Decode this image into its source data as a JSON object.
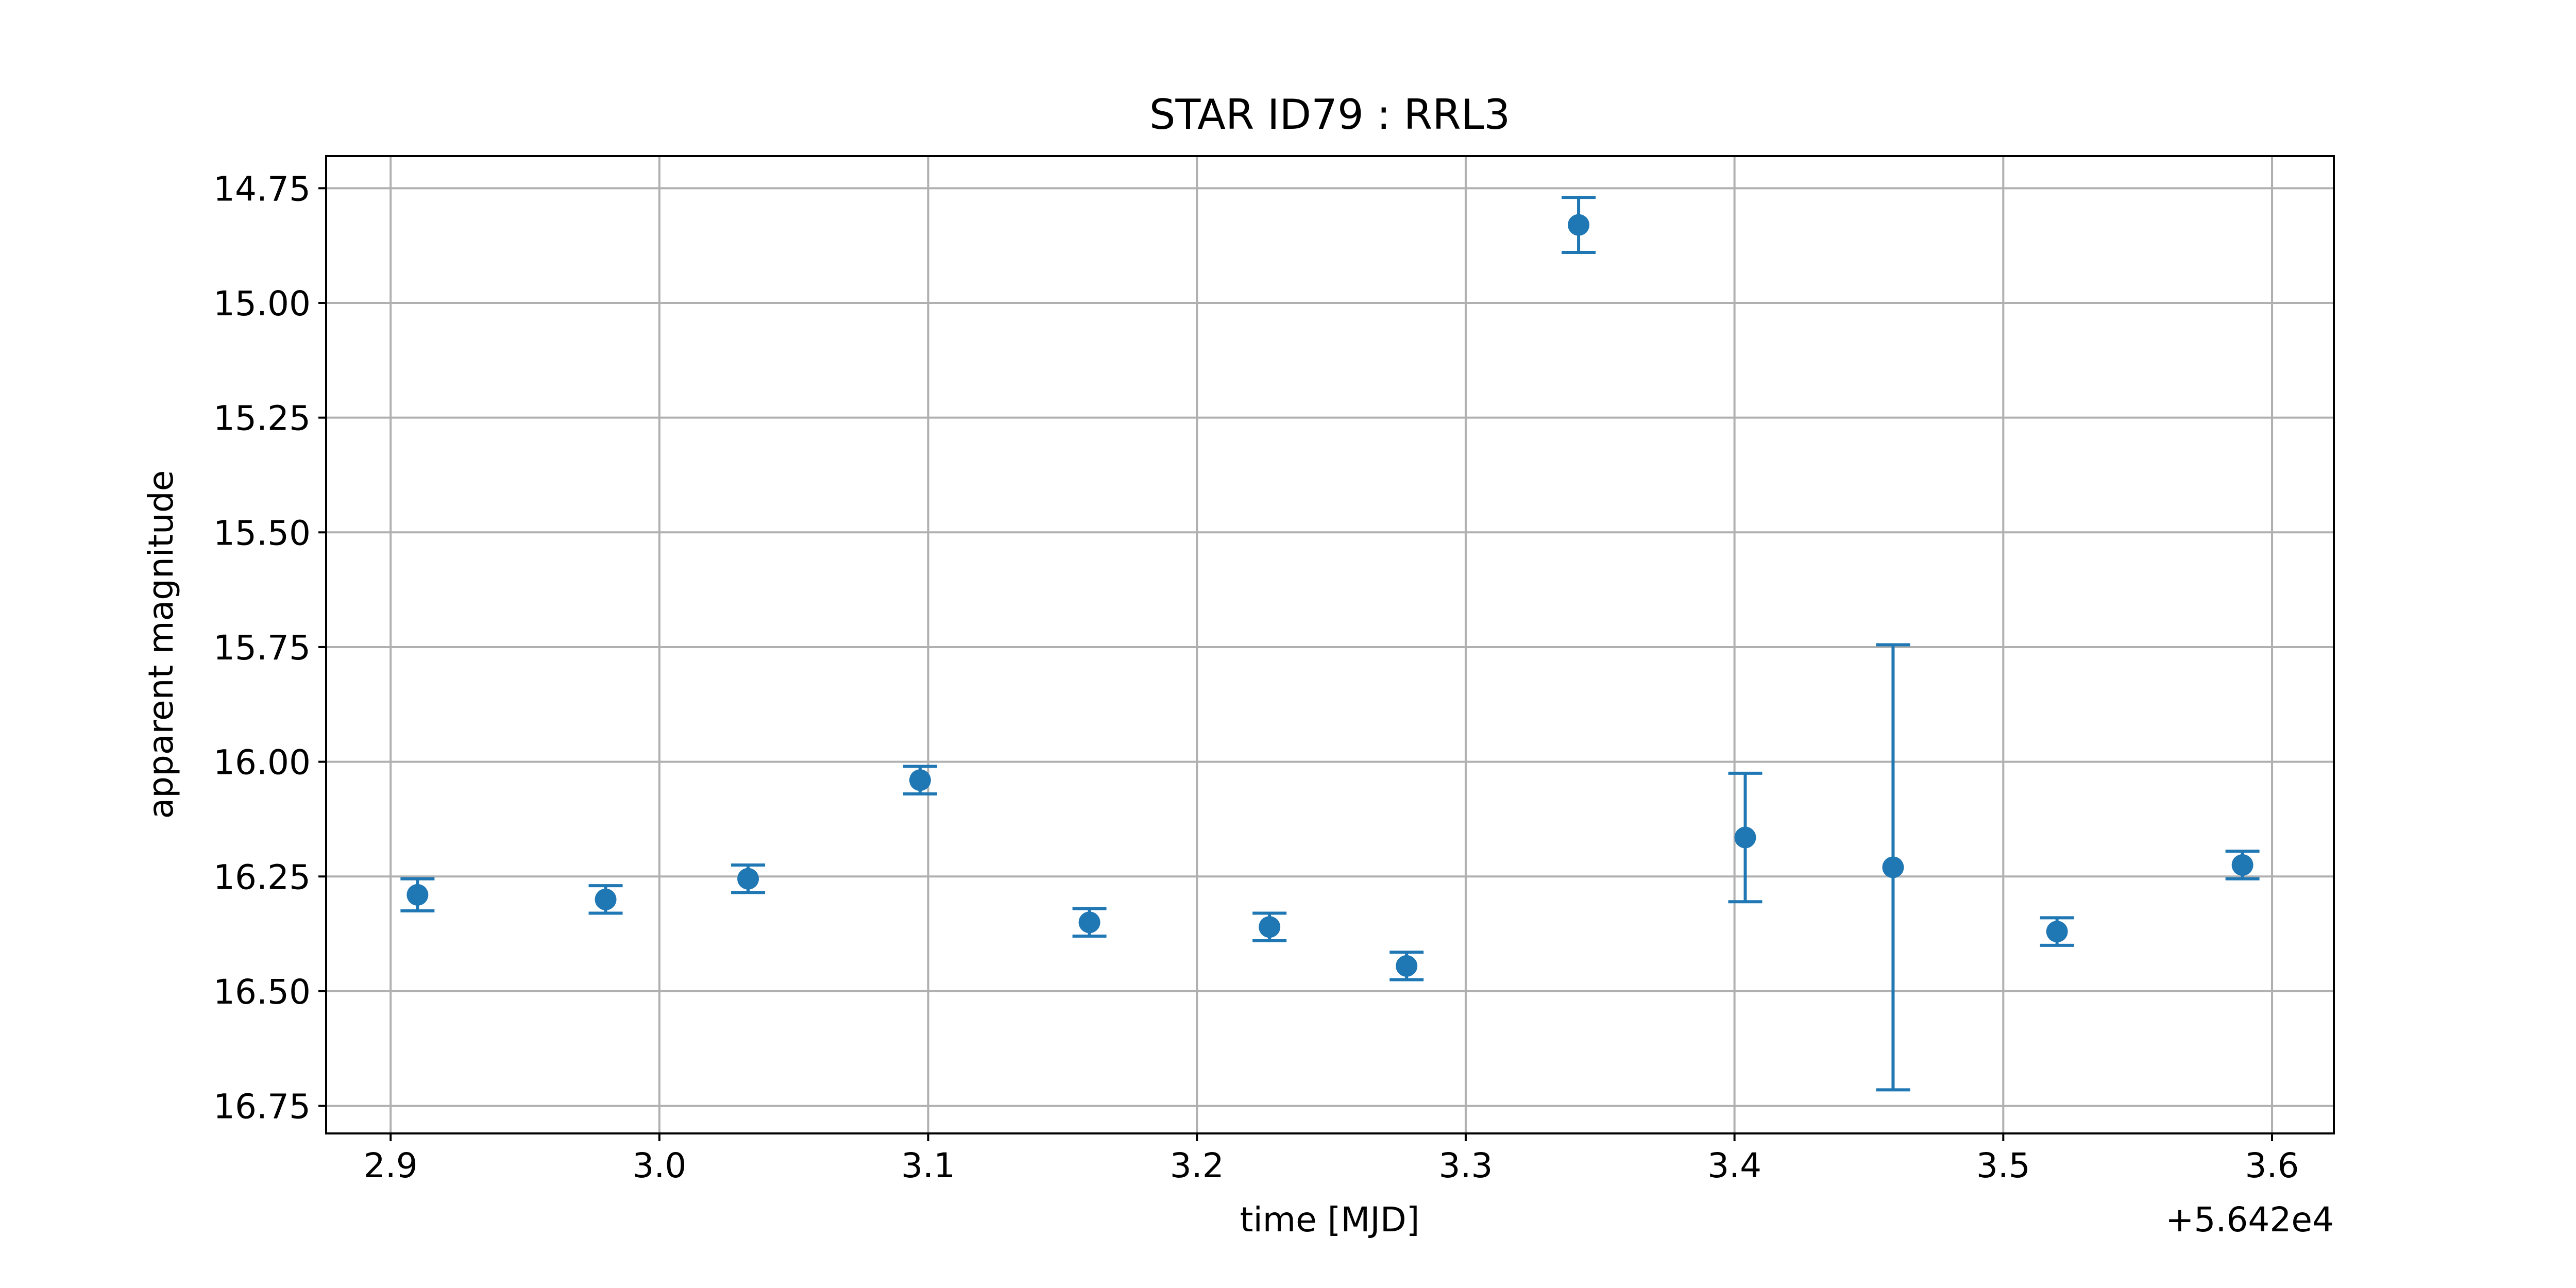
{
  "chart_data": {
    "type": "scatter",
    "title": "STAR ID79 : RRL3",
    "xlabel": "time [MJD]",
    "ylabel": "apparent magnitude",
    "x_offset_label": "+5.642e4",
    "x_offset": 56420,
    "xlim": [
      56422.876,
      56423.623
    ],
    "ylim": [
      16.81,
      14.68
    ],
    "y_inverted": true,
    "grid": true,
    "x_ticks": [
      56422.9,
      56423.0,
      56423.1,
      56423.2,
      56423.3,
      56423.4,
      56423.5,
      56423.6
    ],
    "x_tick_labels": [
      "2.9",
      "3.0",
      "3.1",
      "3.2",
      "3.3",
      "3.4",
      "3.5",
      "3.6"
    ],
    "y_ticks": [
      14.75,
      15.0,
      15.25,
      15.5,
      15.75,
      16.0,
      16.25,
      16.5,
      16.75
    ],
    "y_tick_labels": [
      "14.75",
      "15.00",
      "15.25",
      "15.50",
      "15.75",
      "16.00",
      "16.25",
      "16.50",
      "16.75"
    ],
    "series": [
      {
        "color": "#1f77b4",
        "points": [
          {
            "x": 56422.91,
            "y": 16.29,
            "err": 0.035
          },
          {
            "x": 56422.98,
            "y": 16.3,
            "err": 0.03
          },
          {
            "x": 56423.033,
            "y": 16.255,
            "err": 0.03
          },
          {
            "x": 56423.097,
            "y": 16.04,
            "err": 0.03
          },
          {
            "x": 56423.16,
            "y": 16.35,
            "err": 0.03
          },
          {
            "x": 56423.227,
            "y": 16.36,
            "err": 0.03
          },
          {
            "x": 56423.278,
            "y": 16.445,
            "err": 0.03
          },
          {
            "x": 56423.342,
            "y": 14.83,
            "err": 0.06
          },
          {
            "x": 56423.404,
            "y": 16.165,
            "err": 0.14
          },
          {
            "x": 56423.459,
            "y": 16.23,
            "err": 0.485
          },
          {
            "x": 56423.52,
            "y": 16.37,
            "err": 0.03
          },
          {
            "x": 56423.589,
            "y": 16.225,
            "err": 0.03
          }
        ]
      }
    ],
    "frame_color": "#000000",
    "grid_color": "#b0b0b0"
  }
}
